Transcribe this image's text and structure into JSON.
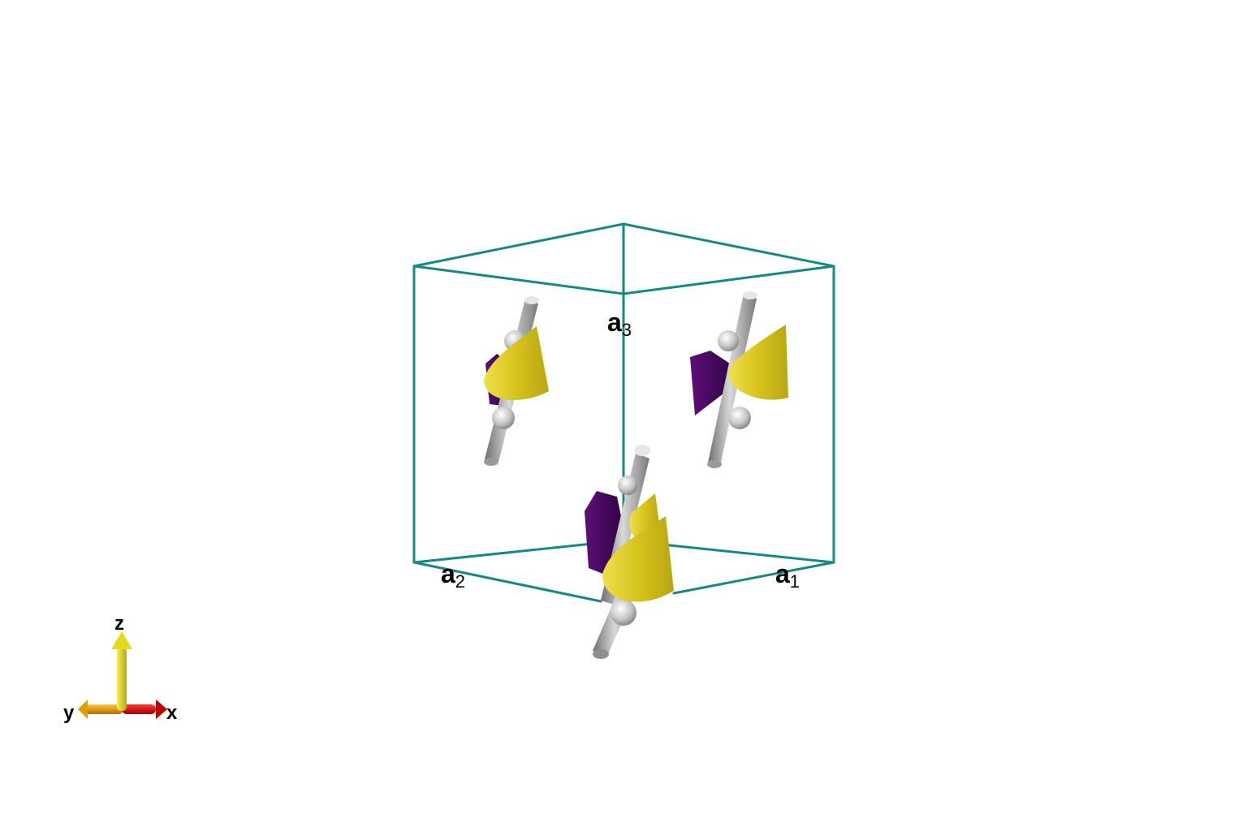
{
  "colors": {
    "cell_edge": "#138a87",
    "spin_up": "#d8c51c",
    "spin_down": "#46055f",
    "rod": "#9e9e9e",
    "axis_x": "#d80000",
    "axis_y": "#e0a000",
    "axis_z": "#e4dc1a"
  },
  "lattice_vectors": {
    "a1": {
      "base": "a",
      "sub": "1"
    },
    "a2": {
      "base": "a",
      "sub": "2"
    },
    "a3": {
      "base": "a",
      "sub": "3"
    }
  },
  "axes": {
    "x_label": "x",
    "y_label": "y",
    "z_label": "z"
  },
  "sites": [
    {
      "id": "left-upper",
      "moment": "up-tilted"
    },
    {
      "id": "right-upper",
      "moment": "up-tilted"
    },
    {
      "id": "center-lower-back",
      "moment": "up-tilted"
    },
    {
      "id": "center-lower-front",
      "moment": "up-tilted"
    }
  ]
}
